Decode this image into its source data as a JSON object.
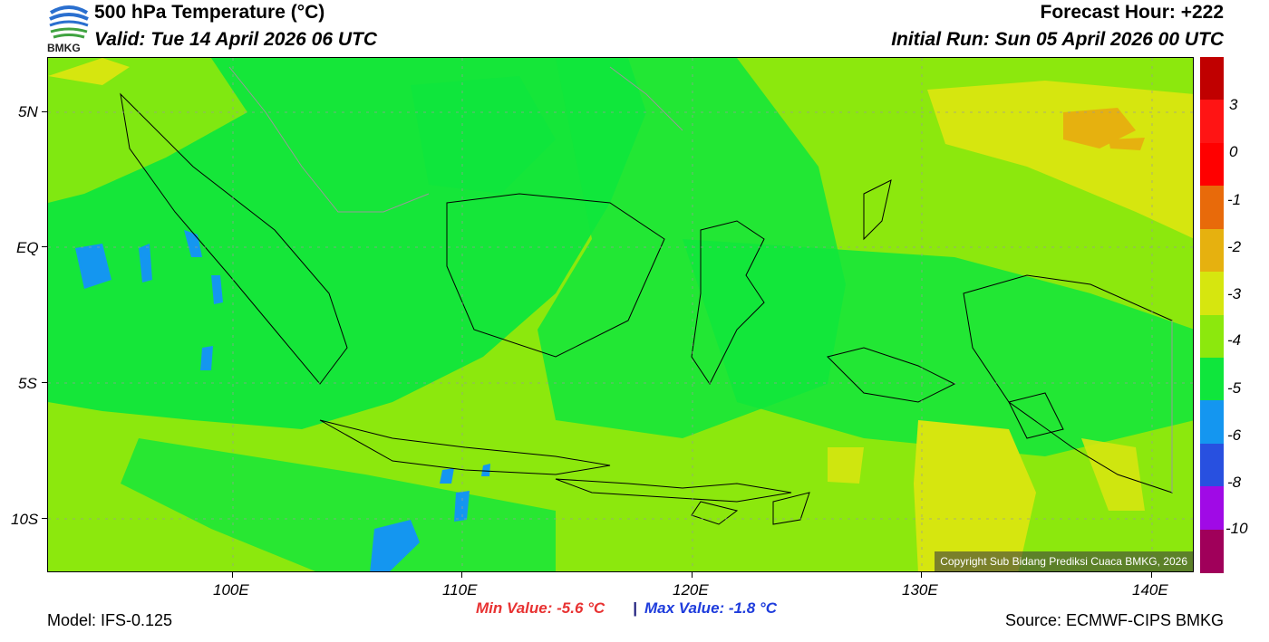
{
  "header": {
    "title": "500 hPa Temperature (°C)",
    "valid": "Valid: Tue 14 April 2026 06 UTC",
    "forecast_hour": "Forecast Hour: +222",
    "initial_run": "Initial Run: Sun 05 April 2026 00 UTC",
    "logo_text": "BMKG"
  },
  "axes": {
    "lat_labels": [
      "5N",
      "EQ",
      "5S",
      "10S"
    ],
    "lon_labels": [
      "100E",
      "110E",
      "120E",
      "130E",
      "140E"
    ]
  },
  "colorbar": {
    "colors": [
      "#c00000",
      "#ff1414",
      "#ff0000",
      "#e86a0a",
      "#e6b10f",
      "#d6e60f",
      "#8ce80d",
      "#0fe63c",
      "#1496f0",
      "#2850e0",
      "#a00ae6",
      "#a0005a"
    ],
    "labels": [
      "3",
      "0",
      "-1",
      "-2",
      "-3",
      "-4",
      "-5",
      "-6",
      "-8",
      "-10"
    ]
  },
  "map": {
    "copyright": "Copyright Sub Bidang Prediksi Cuaca BMKG, 2026",
    "colors": {
      "green": "#0fe63c",
      "lightgreen": "#8ce80d",
      "yellow": "#d6e60f",
      "orange": "#e6b10f",
      "blue": "#1496f0"
    }
  },
  "footer": {
    "model": "Model: IFS-0.125",
    "min_value": "Min Value: -5.6 °C",
    "separator": "|",
    "max_value": "Max Value: -1.8 °C",
    "source": "Source: ECMWF-CIPS BMKG"
  }
}
